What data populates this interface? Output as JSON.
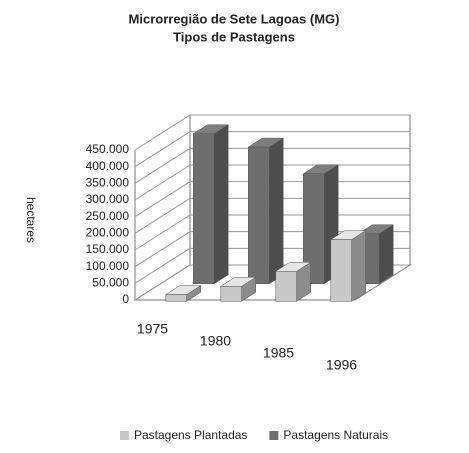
{
  "chart_data": {
    "type": "bar3d",
    "title": "Microrregião de Sete Lagoas (MG)",
    "subtitle": "Tipos de Pastagens",
    "y_label": "hectares",
    "categories": [
      "1975",
      "1980",
      "1985",
      "1996"
    ],
    "series": [
      {
        "name": "Pastagens Plantadas",
        "color": "#c8c8c8",
        "values": [
          20000,
          45000,
          90000,
          185000
        ]
      },
      {
        "name": "Pastagens Naturais",
        "color": "#6e6e6e",
        "values": [
          450000,
          410000,
          330000,
          150000
        ]
      }
    ],
    "ylim": [
      0,
      450000
    ],
    "yticks": [
      0,
      {
        "value": 50000,
        "label": "50.000"
      },
      {
        "value": 100000,
        "label": "100.000"
      },
      {
        "value": 150000,
        "label": "150.000"
      },
      {
        "value": 200000,
        "label": "200.000"
      },
      {
        "value": 250000,
        "label": "250.000"
      },
      {
        "value": 300000,
        "label": "300.000"
      },
      {
        "value": 350000,
        "label": "350.000"
      },
      {
        "value": 400000,
        "label": "400.000"
      },
      {
        "value": 450000,
        "label": "450.000"
      }
    ],
    "grid": true,
    "legend": "bottom"
  }
}
